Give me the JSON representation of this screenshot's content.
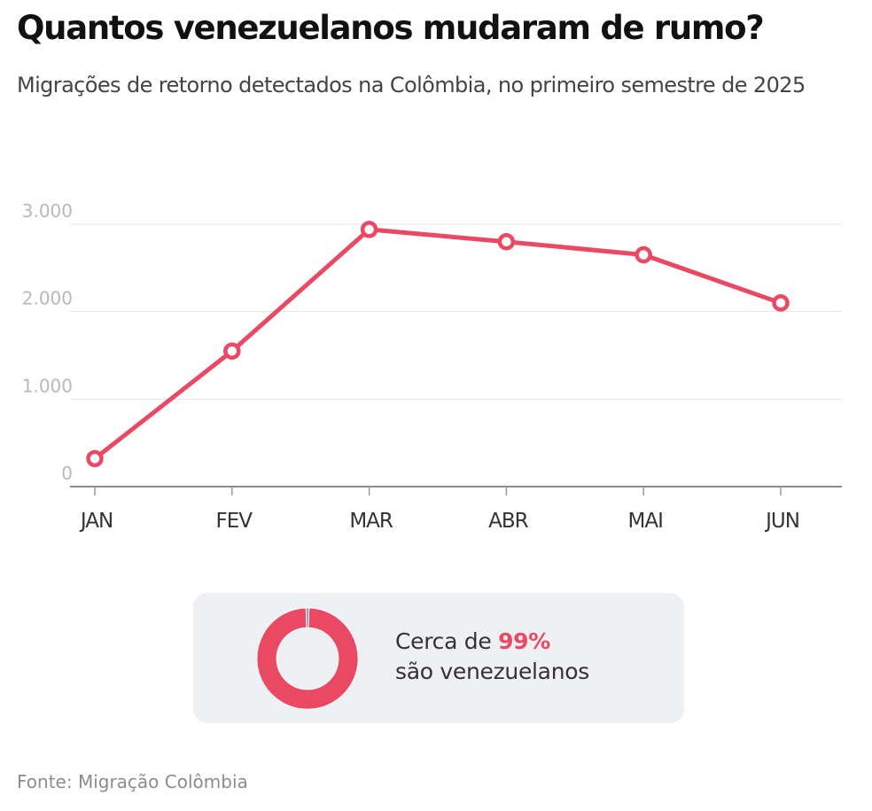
{
  "header": {
    "title": "Quantos venezuelanos mudaram de rumo?",
    "subtitle": "Migrações de retorno detectados na Colômbia, no primeiro semestre de 2025"
  },
  "colors": {
    "series": "#ea4963",
    "grid": "#e3e3e3",
    "axis": "#666666",
    "callout_bg": "#eef0f3",
    "donut_rest": "#9aa3b5"
  },
  "chart_data": {
    "type": "line",
    "title": "Quantos venezuelanos mudaram de rumo?",
    "subtitle": "Migrações de retorno detectados na Colômbia, no primeiro semestre de 2025",
    "xlabel": "",
    "ylabel": "",
    "categories": [
      "JAN",
      "FEV",
      "MAR",
      "ABR",
      "MAI",
      "JUN"
    ],
    "series": [
      {
        "name": "Migrações de retorno",
        "values": [
          320,
          1550,
          2940,
          2800,
          2650,
          2100
        ]
      }
    ],
    "ylim": [
      0,
      3000
    ],
    "yticks": [
      0,
      1000,
      2000,
      3000
    ],
    "ytick_labels": [
      "0",
      "1.000",
      "2.000",
      "3.000"
    ],
    "grid": true,
    "legend": "none",
    "markers": "hollow-circle"
  },
  "callout": {
    "prefix": "Cerca de ",
    "highlight": "99%",
    "line2": "são venezuelanos",
    "donut": {
      "type": "pie",
      "slices": [
        {
          "name": "venezuelanos",
          "value": 99
        },
        {
          "name": "outros",
          "value": 1
        }
      ]
    }
  },
  "footer": {
    "source": "Fonte: Migração Colômbia"
  }
}
